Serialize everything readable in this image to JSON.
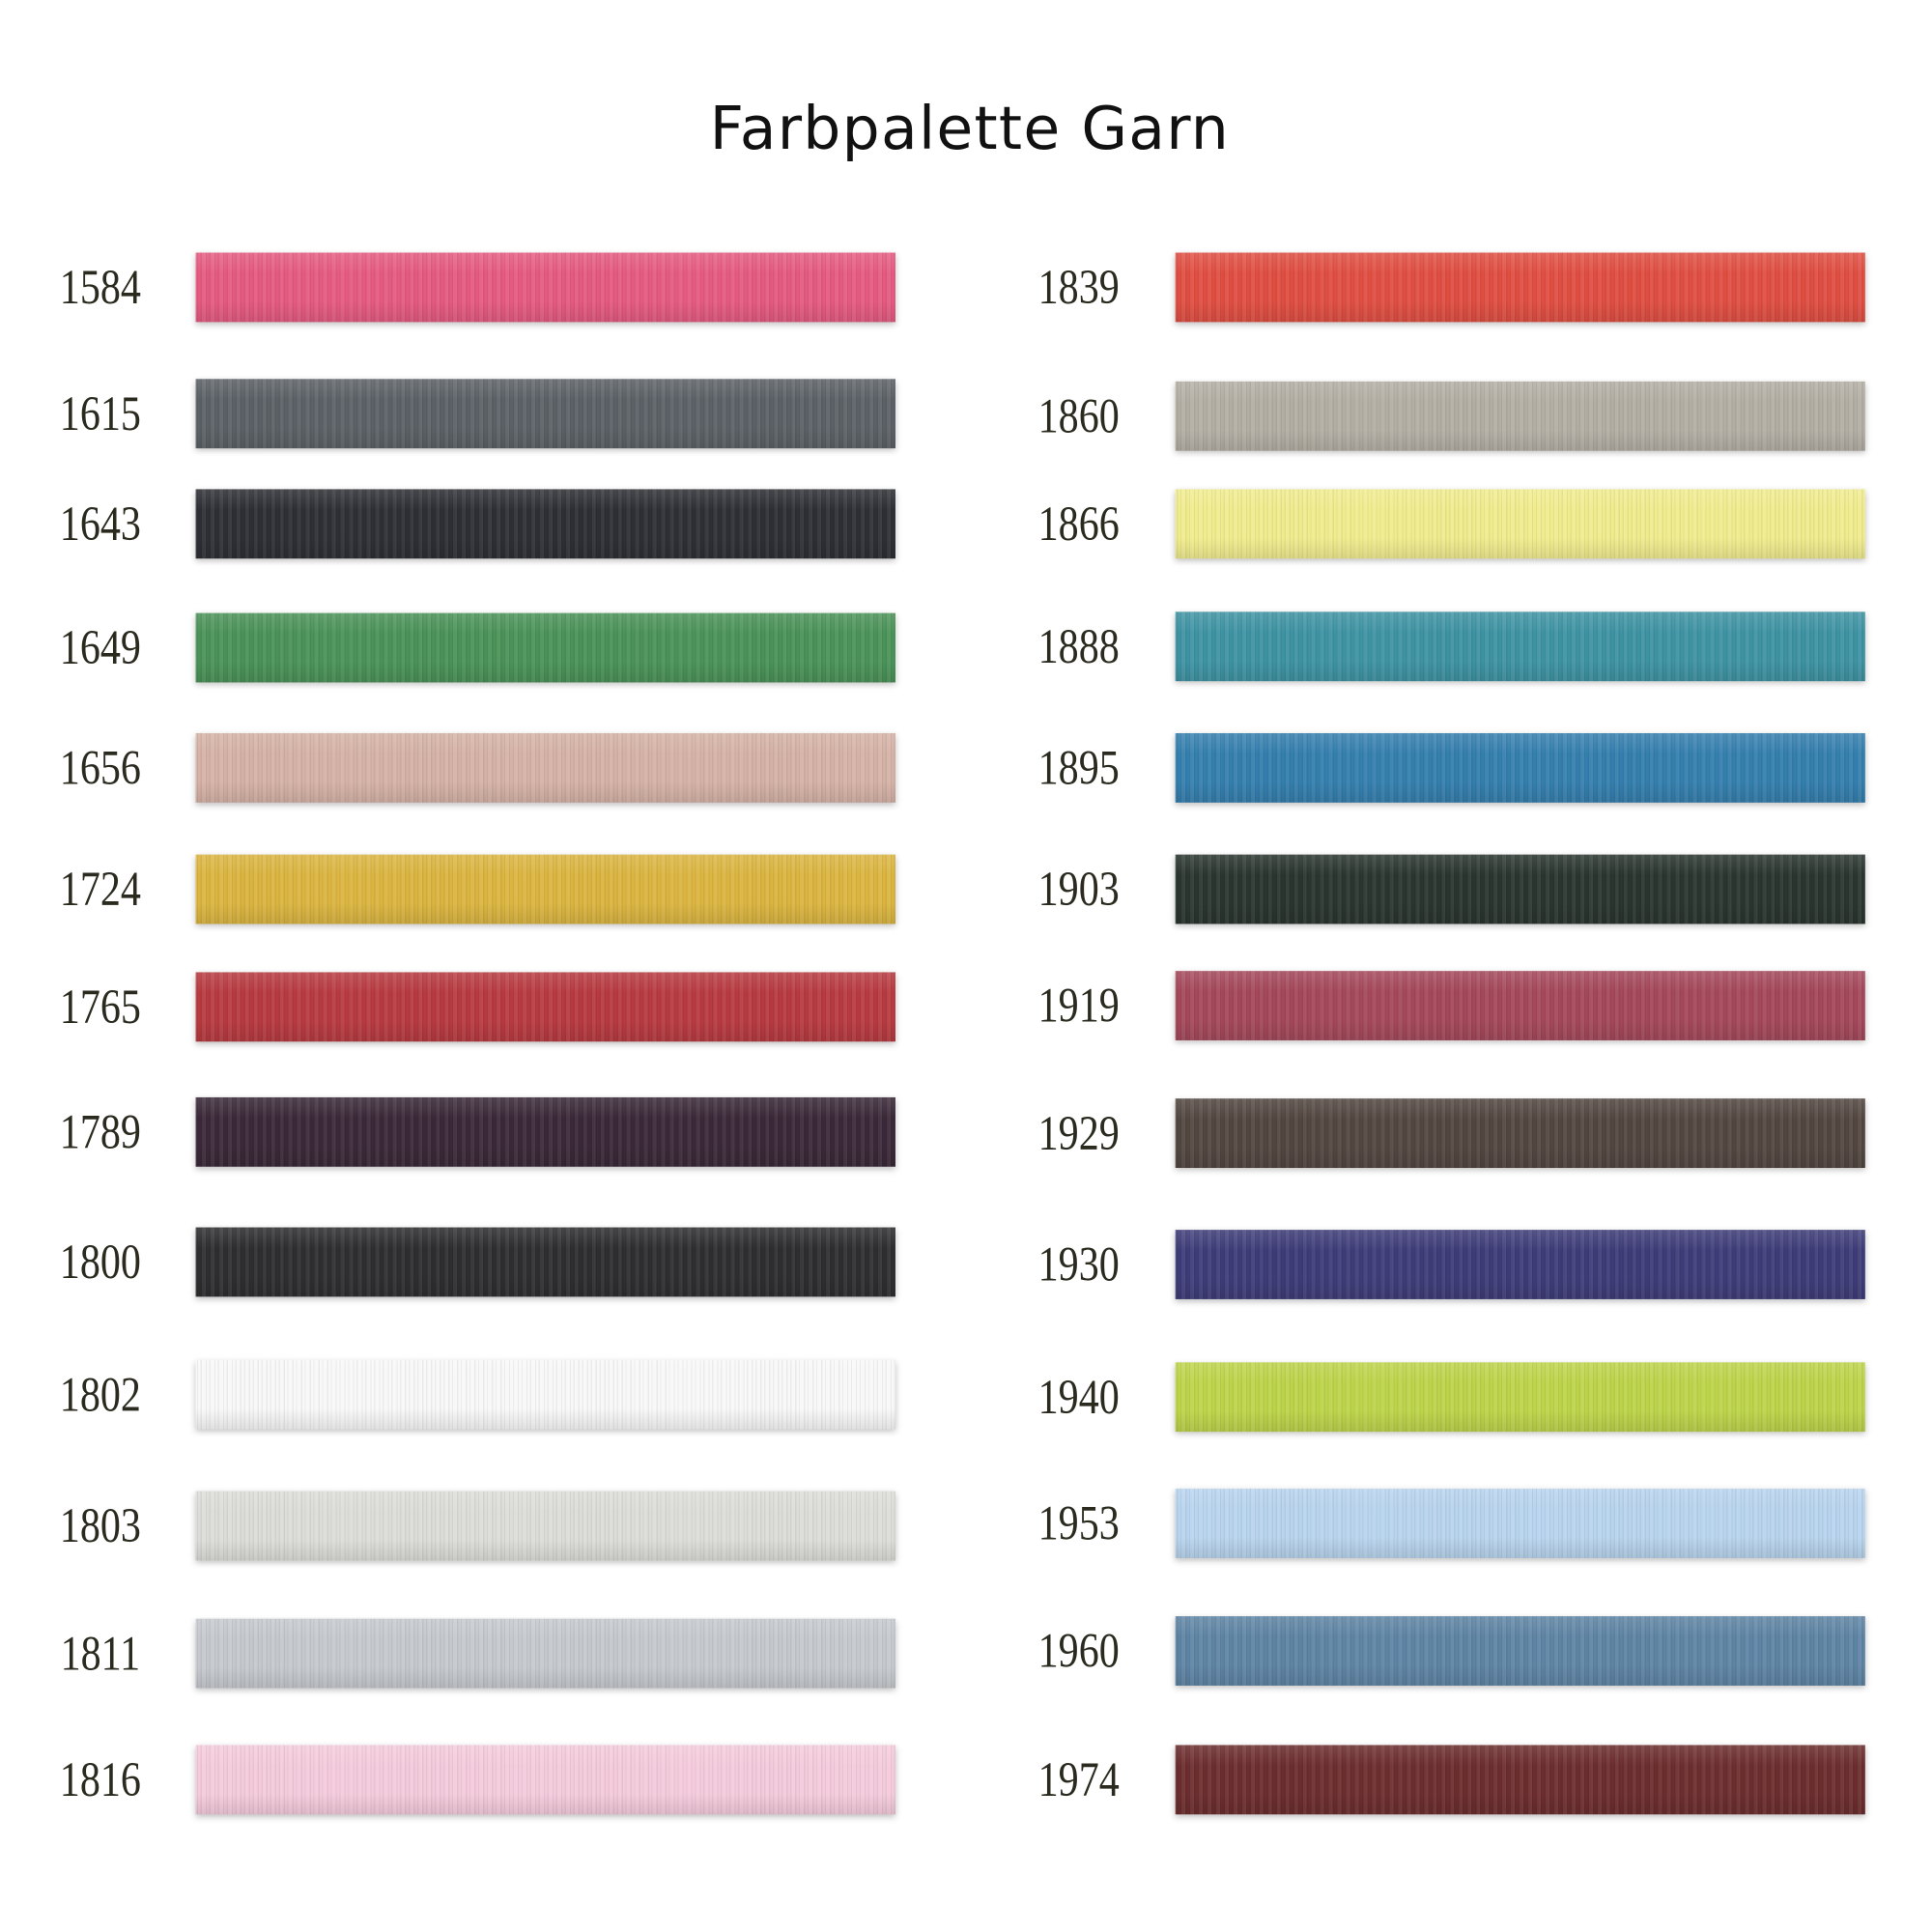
{
  "title": "Farbpalette Garn",
  "left": [
    {
      "code": "1584",
      "color": "#e55a80"
    },
    {
      "code": "1615",
      "color": "#5b6166"
    },
    {
      "code": "1643",
      "color": "#2d2f34"
    },
    {
      "code": "1649",
      "color": "#4a9258"
    },
    {
      "code": "1656",
      "color": "#d5b2a6"
    },
    {
      "code": "1724",
      "color": "#dbb540"
    },
    {
      "code": "1765",
      "color": "#b73a40"
    },
    {
      "code": "1789",
      "color": "#3a2838"
    },
    {
      "code": "1800",
      "color": "#2e2e30"
    },
    {
      "code": "1802",
      "color": "#f8f8f8"
    },
    {
      "code": "1803",
      "color": "#dcdcd8"
    },
    {
      "code": "1811",
      "color": "#c5c9cd"
    },
    {
      "code": "1816",
      "color": "#f4cbdc"
    }
  ],
  "right": [
    {
      "code": "1839",
      "color": "#e04e42"
    },
    {
      "code": "1860",
      "color": "#b3aea4"
    },
    {
      "code": "1866",
      "color": "#f0ec8e"
    },
    {
      "code": "1888",
      "color": "#3e93a3"
    },
    {
      "code": "1895",
      "color": "#347fae"
    },
    {
      "code": "1903",
      "color": "#2a352f"
    },
    {
      "code": "1919",
      "color": "#a4485b"
    },
    {
      "code": "1929",
      "color": "#524640"
    },
    {
      "code": "1930",
      "color": "#3e3c78"
    },
    {
      "code": "1940",
      "color": "#bdd44a"
    },
    {
      "code": "1953",
      "color": "#b8d4ee"
    },
    {
      "code": "1960",
      "color": "#5e84a4"
    },
    {
      "code": "1974",
      "color": "#6c2d2e"
    }
  ]
}
